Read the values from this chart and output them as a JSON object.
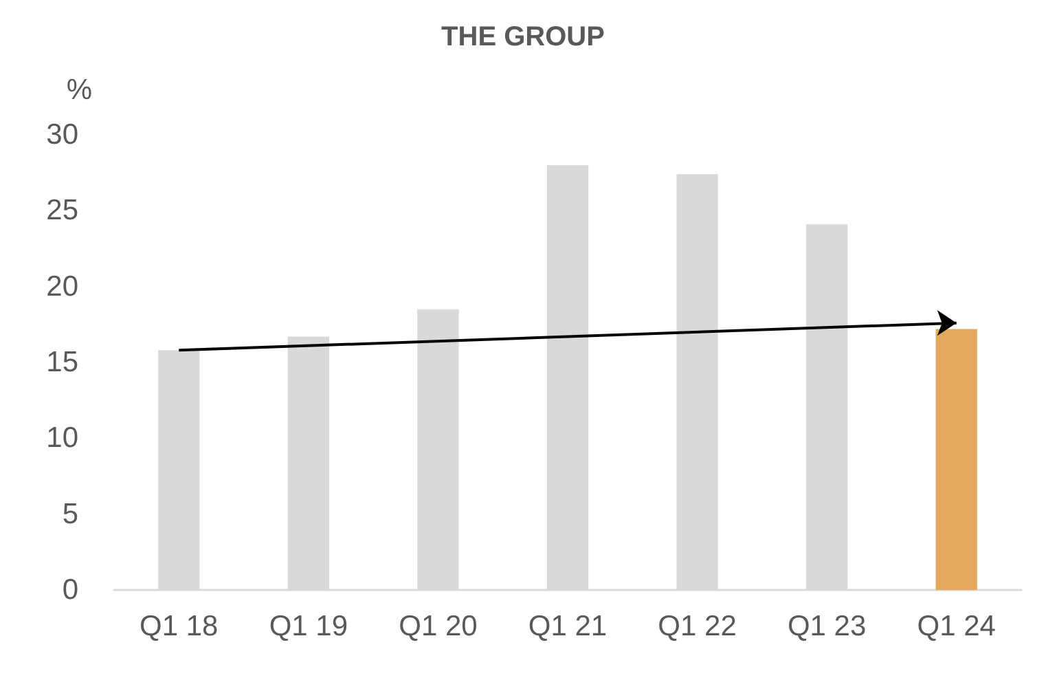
{
  "chart_data": {
    "type": "bar",
    "title": "THE GROUP",
    "ylabel": "%",
    "categories": [
      "Q1 18",
      "Q1 19",
      "Q1 20",
      "Q1 21",
      "Q1 22",
      "Q1 23",
      "Q1 24"
    ],
    "series": [
      {
        "values": [
          15.8,
          16.7,
          18.5,
          28.0,
          27.4,
          24.1,
          17.2
        ],
        "colors": [
          "#d9d9d9",
          "#d9d9d9",
          "#d9d9d9",
          "#d9d9d9",
          "#d9d9d9",
          "#d9d9d9",
          "#e5a85f"
        ]
      },
      {
        "type": "line",
        "color": "#000000",
        "values": [
          15.8,
          null,
          null,
          null,
          null,
          null,
          17.6
        ]
      }
    ],
    "ylim": [
      0,
      30
    ],
    "yticks": [
      0,
      5,
      10,
      15,
      20,
      25,
      30
    ],
    "grid": false
  }
}
